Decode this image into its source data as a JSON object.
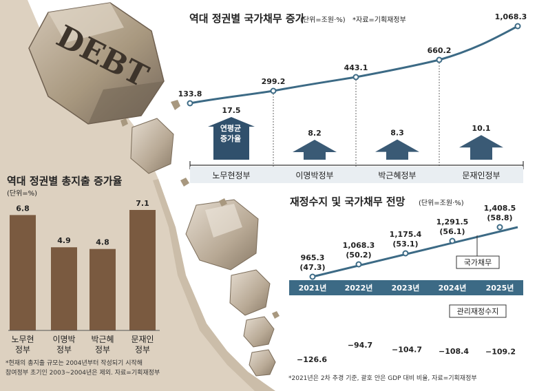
{
  "chart_data": [
    {
      "type": "line+arrows",
      "title": "역대 정권별 국가채무 증가",
      "unit": "(단위=조원·%)",
      "source": "*자료=기획재정부",
      "categories": [
        "노무현정부",
        "이명박정부",
        "박근혜정부",
        "문재인정부"
      ],
      "debt_points": [
        "133.8",
        "299.2",
        "443.1",
        "660.2",
        "1,068.3"
      ],
      "debt_values": [
        133.8,
        299.2,
        443.1,
        660.2,
        1068.3
      ],
      "growth_label": [
        "연평균",
        "증가율"
      ],
      "growth_labels": [
        "17.5",
        "8.2",
        "8.3",
        "10.1"
      ],
      "growth_values": [
        17.5,
        8.2,
        8.3,
        10.1
      ]
    },
    {
      "type": "bar",
      "title": "역대 정권별 총지출 증가율",
      "unit": "(단위=%)",
      "categories": [
        [
          "노무현",
          "정부"
        ],
        [
          "이명박",
          "정부"
        ],
        [
          "박근혜",
          "정부"
        ],
        [
          "문재인",
          "정부"
        ]
      ],
      "value_labels": [
        "6.8",
        "4.9",
        "4.8",
        "7.1"
      ],
      "values": [
        6.8,
        4.9,
        4.8,
        7.1
      ],
      "notes": [
        "*현재의 총지출 규모는 2004년부터 작성되기 시작해",
        "참여정부 초기인 2003~2004년은 제외. 자료=기획재정부"
      ]
    },
    {
      "type": "line+bar",
      "title": "재정수지 및 국가채무 전망",
      "unit": "(단위=조원·%)",
      "years": [
        "2021년",
        "2022년",
        "2023년",
        "2024년",
        "2025년"
      ],
      "debt_labels": [
        "965.3",
        "1,068.3",
        "1,175.4",
        "1,291.5",
        "1,408.5"
      ],
      "debt_values": [
        965.3,
        1068.3,
        1175.4,
        1291.5,
        1408.5
      ],
      "gdp_ratio_labels": [
        "(47.3)",
        "(50.2)",
        "(53.1)",
        "(56.1)",
        "(58.8)"
      ],
      "gdp_ratio_values": [
        47.3,
        50.2,
        53.1,
        56.1,
        58.8
      ],
      "balance_labels": [
        "−126.6",
        "−94.7",
        "−104.7",
        "−108.4",
        "−109.2"
      ],
      "balance_values": [
        -126.6,
        -94.7,
        -104.7,
        -108.4,
        -109.2
      ],
      "legend_debt": "국가채무",
      "legend_balance": "관리재정수지",
      "note": "*2021년은 2차 추경 기준, 괄호 안은 GDP 대비 비율, 자료=기획재정부"
    }
  ],
  "illustration": {
    "boulder_text": "DEBT"
  },
  "colors": {
    "brown": "#7a5a40",
    "navy": "#30506c",
    "teal": "#3c6a85",
    "sand": "#ddd1c0",
    "dark": "#333333"
  }
}
